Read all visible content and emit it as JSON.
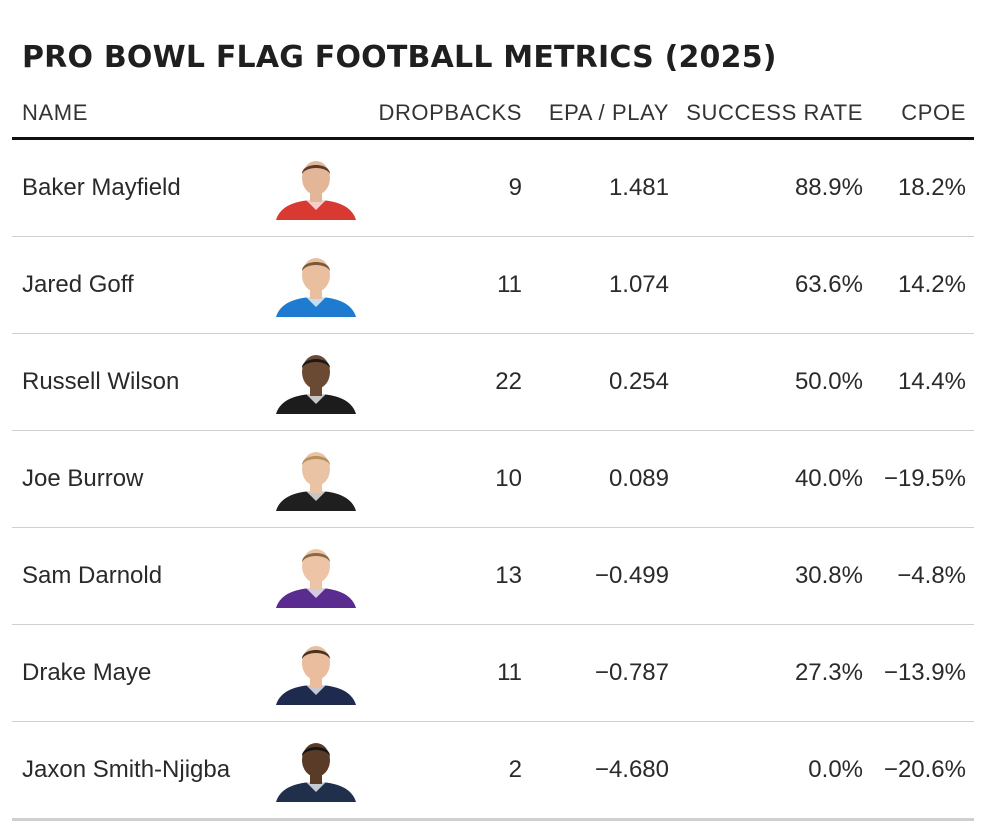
{
  "title": "PRO BOWL FLAG FOOTBALL METRICS (2025)",
  "columns": {
    "name": "NAME",
    "dropbacks": "DROPBACKS",
    "epa": "EPA / PLAY",
    "success": "SUCCESS RATE",
    "cpoe": "CPOE"
  },
  "rows": [
    {
      "name": "Baker Mayfield",
      "dropbacks": "9",
      "epa": "1.481",
      "success": "88.9%",
      "cpoe": "18.2%",
      "colors": {
        "jersey": "#d83a32",
        "skin": "#e4b698",
        "hair": "#5a3c28"
      }
    },
    {
      "name": "Jared Goff",
      "dropbacks": "11",
      "epa": "1.074",
      "success": "63.6%",
      "cpoe": "14.2%",
      "colors": {
        "jersey": "#1e7bd0",
        "skin": "#e9bfa0",
        "hair": "#7a5a36"
      }
    },
    {
      "name": "Russell Wilson",
      "dropbacks": "22",
      "epa": "0.254",
      "success": "50.0%",
      "cpoe": "14.4%",
      "colors": {
        "jersey": "#1c1c1c",
        "skin": "#6b4a33",
        "hair": "#1a1a1a"
      }
    },
    {
      "name": "Joe Burrow",
      "dropbacks": "10",
      "epa": "0.089",
      "success": "40.0%",
      "cpoe": "−19.5%",
      "colors": {
        "jersey": "#1f1f1f",
        "skin": "#eac3a4",
        "hair": "#b8905a"
      }
    },
    {
      "name": "Sam Darnold",
      "dropbacks": "13",
      "epa": "−0.499",
      "success": "30.8%",
      "cpoe": "−4.8%",
      "colors": {
        "jersey": "#5b2c8f",
        "skin": "#eec4a6",
        "hair": "#8a6a46"
      }
    },
    {
      "name": "Drake Maye",
      "dropbacks": "11",
      "epa": "−0.787",
      "success": "27.3%",
      "cpoe": "−13.9%",
      "colors": {
        "jersey": "#1e2b4f",
        "skin": "#e9bd9d",
        "hair": "#4a3120"
      }
    },
    {
      "name": "Jaxon Smith-Njigba",
      "dropbacks": "2",
      "epa": "−4.680",
      "success": "0.0%",
      "cpoe": "−20.6%",
      "colors": {
        "jersey": "#1f2f4c",
        "skin": "#5a3b28",
        "hair": "#151515"
      }
    }
  ]
}
